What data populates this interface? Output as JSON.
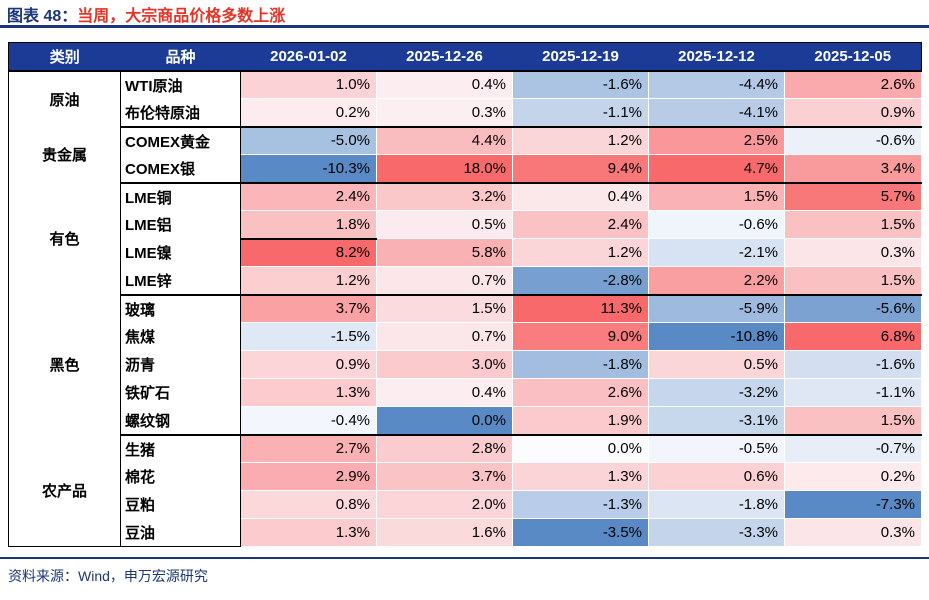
{
  "figure": {
    "label": "图表 48：",
    "title": "当周，大宗商品价格多数上涨",
    "source": "资料来源：Wind，申万宏源研究"
  },
  "colors": {
    "navy_accent": "#1A3678",
    "header_bg": "#1B3B97",
    "title_red": "#E73326",
    "scale_max_red": "#F8696B",
    "scale_mid_white": "#FCFCFF",
    "scale_min_blue": "#5A8AC6"
  },
  "chart_data": {
    "type": "heatmap",
    "title": "当周，大宗商品价格多数上涨",
    "unit": "%",
    "columns": [
      "类别",
      "品种",
      "2026-01-02",
      "2025-12-26",
      "2025-12-19",
      "2025-12-12",
      "2025-12-05"
    ],
    "color_rule": "per-column diverging scale: column max -> red #F8696B, zero -> white #FCFCFF, column min -> blue #5A8AC6 (column minimum is colored full blue even when it is >= 0)",
    "rows": [
      {
        "category": "原油",
        "item": "WTI原油",
        "values": [
          1.0,
          0.4,
          -1.6,
          -4.4,
          2.6
        ]
      },
      {
        "category": "原油",
        "item": "布伦特原油",
        "values": [
          0.2,
          0.3,
          -1.1,
          -4.1,
          0.9
        ]
      },
      {
        "category": "贵金属",
        "item": "COMEX黄金",
        "values": [
          -5.0,
          4.4,
          1.2,
          2.5,
          -0.6
        ]
      },
      {
        "category": "贵金属",
        "item": "COMEX银",
        "values": [
          -10.3,
          18.0,
          9.4,
          4.7,
          3.4
        ]
      },
      {
        "category": "有色",
        "item": "LME铜",
        "values": [
          2.4,
          3.2,
          0.4,
          1.5,
          5.7
        ]
      },
      {
        "category": "有色",
        "item": "LME铝",
        "values": [
          1.8,
          0.5,
          2.4,
          -0.6,
          1.5
        ]
      },
      {
        "category": "有色",
        "item": "LME镍",
        "values": [
          8.2,
          5.8,
          1.2,
          -2.1,
          0.3
        ]
      },
      {
        "category": "有色",
        "item": "LME锌",
        "values": [
          1.2,
          0.7,
          -2.8,
          2.2,
          1.5
        ]
      },
      {
        "category": "黑色",
        "item": "玻璃",
        "values": [
          3.7,
          1.5,
          11.3,
          -5.9,
          -5.6
        ]
      },
      {
        "category": "黑色",
        "item": "焦煤",
        "values": [
          -1.5,
          0.7,
          9.0,
          -10.8,
          6.8
        ]
      },
      {
        "category": "黑色",
        "item": "沥青",
        "values": [
          0.9,
          3.0,
          -1.8,
          0.5,
          -1.6
        ]
      },
      {
        "category": "黑色",
        "item": "铁矿石",
        "values": [
          1.3,
          0.4,
          2.6,
          -3.2,
          -1.1
        ]
      },
      {
        "category": "黑色",
        "item": "螺纹钢",
        "values": [
          -0.4,
          0.0,
          1.9,
          -3.1,
          1.5
        ]
      },
      {
        "category": "农产品",
        "item": "生猪",
        "values": [
          2.7,
          2.8,
          0.0,
          -0.5,
          -0.7
        ]
      },
      {
        "category": "农产品",
        "item": "棉花",
        "values": [
          2.9,
          3.7,
          1.3,
          0.6,
          0.2
        ]
      },
      {
        "category": "农产品",
        "item": "豆粕",
        "values": [
          0.8,
          2.0,
          -1.3,
          -1.8,
          -7.3
        ]
      },
      {
        "category": "农产品",
        "item": "豆油",
        "values": [
          1.3,
          1.6,
          -3.5,
          -3.3,
          0.3
        ]
      }
    ],
    "quirk_black_underline_cell": {
      "item": "LME铝",
      "column": "2026-01-02"
    }
  }
}
